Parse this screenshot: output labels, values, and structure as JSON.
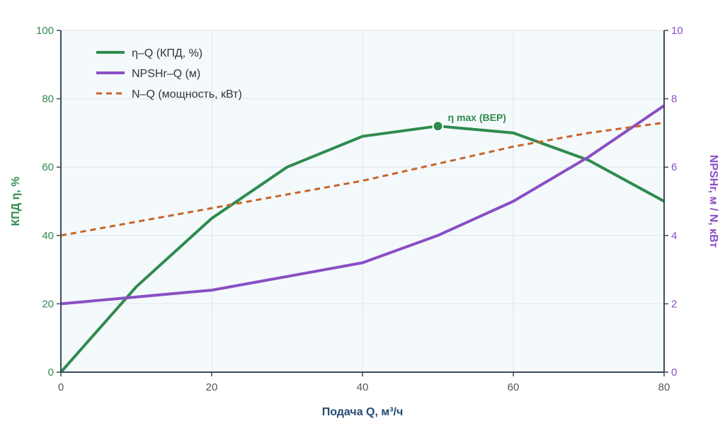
{
  "chart_data": {
    "type": "line",
    "x": [
      0,
      10,
      20,
      30,
      40,
      50,
      60,
      70,
      80
    ],
    "xlabel": "Подача Q, м³/ч",
    "xlim": [
      0,
      80
    ],
    "xticks": [
      0,
      20,
      40,
      60,
      80
    ],
    "y_left": {
      "label": "КПД η, %",
      "lim": [
        0,
        100
      ],
      "ticks": [
        0,
        20,
        40,
        60,
        80,
        100
      ],
      "color": "#2e8b4e"
    },
    "y_right": {
      "label": "NPSHr, м / N, кВт",
      "lim": [
        0,
        10
      ],
      "ticks": [
        0,
        2,
        4,
        6,
        8,
        10
      ],
      "color": "#8a4fc4"
    },
    "series": [
      {
        "name": "η–Q (КПД, %)",
        "axis": "left",
        "color": "#2e8b4e",
        "style": "solid",
        "values": [
          0,
          25,
          45,
          60,
          69,
          72,
          70,
          62,
          50
        ]
      },
      {
        "name": "NPSHr–Q (м)",
        "axis": "right",
        "color": "#8a4fc4",
        "style": "solid",
        "values": [
          2.0,
          2.2,
          2.4,
          2.8,
          3.2,
          4.0,
          5.0,
          6.3,
          7.8
        ]
      },
      {
        "name": "N–Q (мощность, кВт)",
        "axis": "right",
        "color": "#c8642a",
        "style": "dashed",
        "values": [
          4.0,
          4.4,
          4.8,
          5.2,
          5.6,
          6.1,
          6.6,
          7.0,
          7.3
        ]
      }
    ],
    "annotations": [
      {
        "text": "η max (BEP)",
        "x": 50,
        "y": 72,
        "axis": "left",
        "color": "#2e8b4e"
      }
    ],
    "grid": true,
    "legend_position": "top-left",
    "plot_background": "#f4f9fc"
  }
}
